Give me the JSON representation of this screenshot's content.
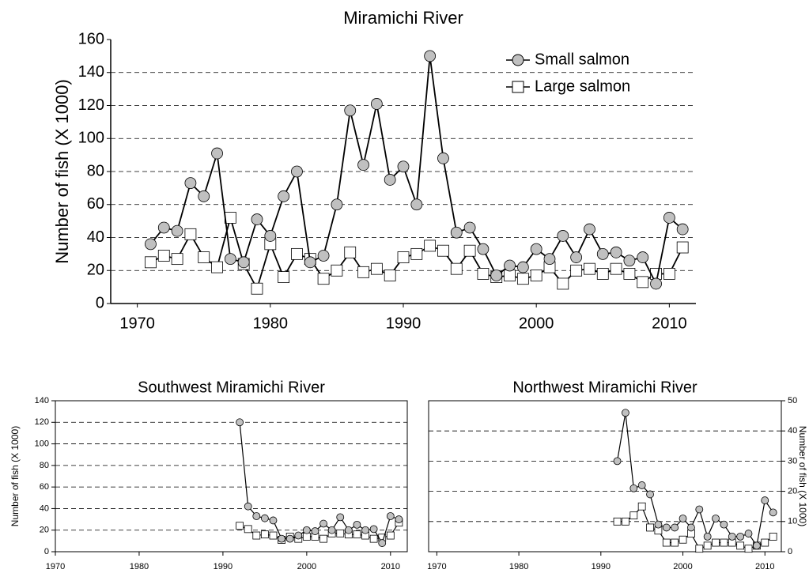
{
  "chart_data": [
    {
      "type": "line",
      "title": "Miramichi River",
      "y_label": "Number of fish (X 1000)",
      "x": [
        1971,
        1972,
        1973,
        1974,
        1975,
        1976,
        1977,
        1978,
        1979,
        1980,
        1981,
        1982,
        1983,
        1984,
        1985,
        1986,
        1987,
        1988,
        1989,
        1990,
        1991,
        1992,
        1993,
        1994,
        1995,
        1996,
        1997,
        1998,
        1999,
        2000,
        2001,
        2002,
        2003,
        2004,
        2005,
        2006,
        2007,
        2008,
        2009,
        2010,
        2011
      ],
      "series": [
        {
          "name": "Small salmon",
          "color": "#c0c0c0",
          "marker": "circle",
          "values": [
            36,
            46,
            44,
            73,
            65,
            91,
            27,
            25,
            51,
            41,
            65,
            80,
            25,
            29,
            60,
            117,
            84,
            121,
            75,
            83,
            60,
            150,
            88,
            43,
            46,
            33,
            17,
            23,
            22,
            33,
            27,
            41,
            28,
            45,
            30,
            31,
            26,
            28,
            12,
            52,
            45
          ]
        },
        {
          "name": "Large salmon",
          "color": "#ffffff",
          "marker": "square",
          "values": [
            25,
            29,
            27,
            42,
            28,
            22,
            52,
            24,
            9,
            36,
            16,
            30,
            27,
            15,
            20,
            31,
            19,
            21,
            17,
            28,
            30,
            35,
            32,
            21,
            32,
            18,
            16,
            17,
            15,
            17,
            22,
            12,
            20,
            21,
            18,
            21,
            18,
            13,
            18,
            18,
            34
          ]
        }
      ],
      "xlim": [
        1968,
        2012
      ],
      "xticks": [
        1970,
        1980,
        1990,
        2000,
        2010
      ],
      "ylim": [
        0,
        160
      ],
      "yticks": [
        0,
        20,
        40,
        60,
        80,
        100,
        120,
        140,
        160
      ],
      "grid": true,
      "legend": "upper right"
    },
    {
      "type": "line",
      "title": "Southwest Miramichi River",
      "y_label": "Number of fish (X 1000)",
      "x": [
        1992,
        1993,
        1994,
        1995,
        1996,
        1997,
        1998,
        1999,
        2000,
        2001,
        2002,
        2003,
        2004,
        2005,
        2006,
        2007,
        2008,
        2009,
        2010,
        2011
      ],
      "series": [
        {
          "color": "#c0c0c0",
          "marker": "circle",
          "values": [
            120,
            42,
            33,
            31,
            29,
            12,
            12,
            15,
            20,
            19,
            26,
            20,
            32,
            20,
            25,
            20,
            21,
            8,
            33,
            30
          ]
        },
        {
          "color": "#ffffff",
          "marker": "square",
          "values": [
            24,
            21,
            15,
            16,
            15,
            11,
            14,
            12,
            14,
            14,
            12,
            17,
            17,
            16,
            16,
            15,
            12,
            13,
            15,
            27
          ]
        }
      ],
      "xlim": [
        1970,
        2012
      ],
      "xticks": [
        1970,
        1980,
        1990,
        2000,
        2010
      ],
      "ylim": [
        0,
        140
      ],
      "yticks": [
        0,
        20,
        40,
        60,
        80,
        100,
        120,
        140
      ],
      "grid": true
    },
    {
      "type": "line",
      "title": "Northwest Miramichi River",
      "y2_label": "Number of fish (X 1000)",
      "x": [
        1992,
        1993,
        1994,
        1995,
        1996,
        1997,
        1998,
        1999,
        2000,
        2001,
        2002,
        2003,
        2004,
        2005,
        2006,
        2007,
        2008,
        2009,
        2010,
        2011
      ],
      "series": [
        {
          "color": "#c0c0c0",
          "marker": "circle",
          "axis": "y2",
          "values": [
            30,
            46,
            21,
            22,
            19,
            9,
            8,
            8,
            11,
            8,
            14,
            5,
            11,
            9,
            5,
            5,
            6,
            2,
            17,
            13
          ]
        },
        {
          "color": "#ffffff",
          "marker": "square",
          "axis": "y2",
          "values": [
            10,
            10,
            12,
            15,
            8,
            7,
            3,
            3,
            4,
            6,
            1,
            2,
            3,
            3,
            3,
            2,
            1,
            2,
            3,
            5
          ]
        }
      ],
      "xlim": [
        1969,
        2012
      ],
      "xticks": [
        1970,
        1980,
        1990,
        2000,
        2010
      ],
      "y2lim": [
        0,
        50
      ],
      "y2ticks": [
        0,
        10,
        20,
        30,
        40,
        50
      ],
      "grid": true
    }
  ]
}
